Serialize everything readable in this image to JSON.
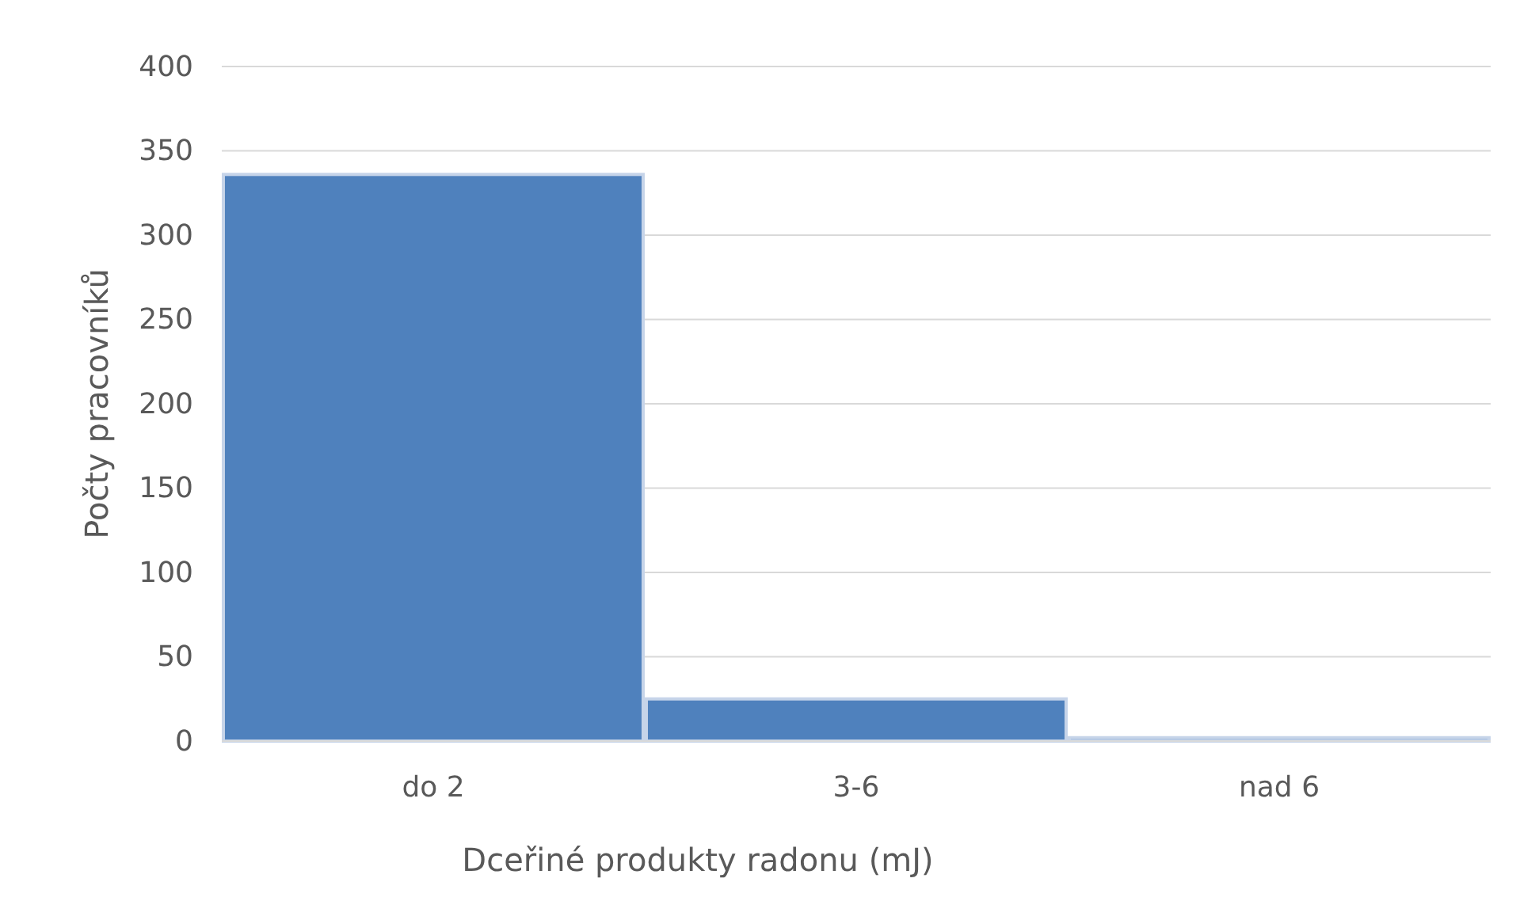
{
  "chart_data": {
    "type": "bar",
    "xlabel": "Dceřiné produkty radonu (mJ)",
    "ylabel": "Počty pracovníků",
    "categories": [
      "do 2",
      "3-6",
      "nad 6"
    ],
    "values": [
      336,
      25,
      2
    ],
    "color": "#4f81bd",
    "ylim": [
      0,
      400
    ],
    "yticks": [
      0,
      50,
      100,
      150,
      200,
      250,
      300,
      350,
      400
    ],
    "grid": "y"
  }
}
